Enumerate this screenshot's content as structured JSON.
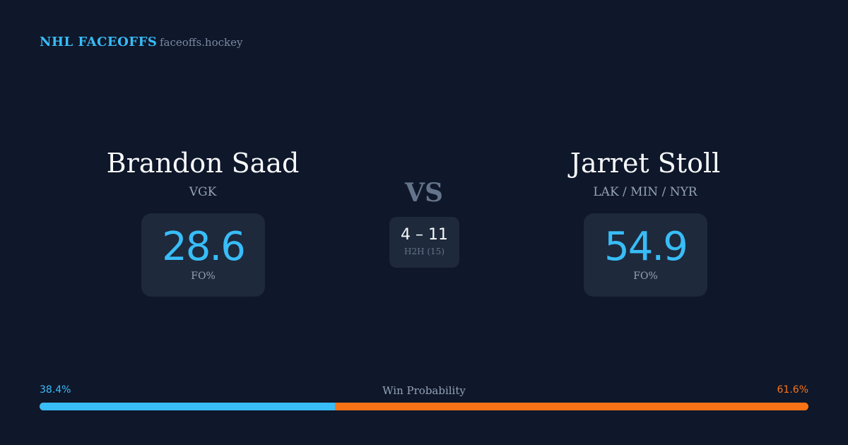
{
  "header": {
    "brand": "NHL FACEOFFS",
    "domain": "faceoffs.hockey"
  },
  "left": {
    "name": "Brandon Saad",
    "team": "VGK",
    "fo_pct": "28.6",
    "fo_label": "FO%"
  },
  "right": {
    "name": "Jarret Stoll",
    "team": "LAK / MIN / NYR",
    "fo_pct": "54.9",
    "fo_label": "FO%"
  },
  "center": {
    "vs": "VS",
    "h2h_score": "4 – 11",
    "h2h_label": "H2H (15)"
  },
  "win_probability": {
    "label": "Win Probability",
    "left": "38.4%",
    "right": "61.6%",
    "left_value": 38.4,
    "right_value": 61.6
  },
  "colors": {
    "background": "#0f172a",
    "card": "#1e293b",
    "left_accent": "#38bdf8",
    "right_accent": "#f97316"
  }
}
